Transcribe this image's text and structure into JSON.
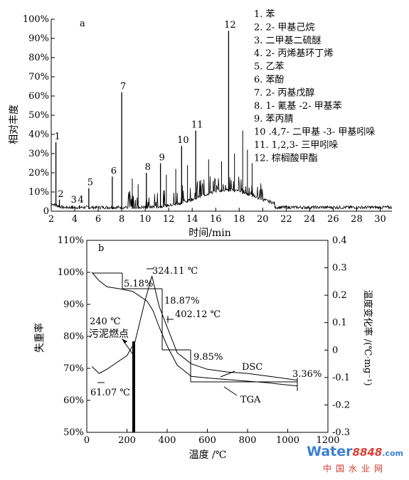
{
  "chart_data": [
    {
      "panel": "a",
      "type": "line",
      "xlabel": "时间/min",
      "ylabel": "相对丰度",
      "xlim": [
        2,
        31
      ],
      "ylim": [
        0,
        100
      ],
      "x_ticks": [
        2,
        4,
        6,
        8,
        10,
        12,
        14,
        16,
        18,
        20,
        22,
        24,
        26,
        28,
        30
      ],
      "y_ticks": [
        "0",
        "10%",
        "20%",
        "30%",
        "40%",
        "50%",
        "60%",
        "70%",
        "80%",
        "90%",
        "100%"
      ],
      "peaks": [
        {
          "label": "1",
          "x": 2.4,
          "y": 36
        },
        {
          "label": "2",
          "x": 2.7,
          "y": 6
        },
        {
          "label": "3",
          "x": 3.8,
          "y": 3
        },
        {
          "label": "4",
          "x": 4.4,
          "y": 3
        },
        {
          "label": "5",
          "x": 5.2,
          "y": 12
        },
        {
          "label": "6",
          "x": 7.2,
          "y": 18
        },
        {
          "label": "7",
          "x": 8.0,
          "y": 62
        },
        {
          "label": "8",
          "x": 10.1,
          "y": 20
        },
        {
          "label": "9",
          "x": 11.3,
          "y": 25
        },
        {
          "label": "10",
          "x": 13.1,
          "y": 34
        },
        {
          "label": "11",
          "x": 14.3,
          "y": 42
        },
        {
          "label": "12",
          "x": 17.1,
          "y": 94
        }
      ],
      "minor_peaks": [
        {
          "x": 8.9,
          "y": 17
        },
        {
          "x": 9.4,
          "y": 14
        },
        {
          "x": 11.8,
          "y": 19
        },
        {
          "x": 12.6,
          "y": 22
        },
        {
          "x": 13.6,
          "y": 24
        },
        {
          "x": 15.4,
          "y": 27
        },
        {
          "x": 16.5,
          "y": 26
        },
        {
          "x": 17.6,
          "y": 30
        },
        {
          "x": 18.3,
          "y": 42
        },
        {
          "x": 18.7,
          "y": 32
        },
        {
          "x": 19.1,
          "y": 25
        }
      ],
      "legend": [
        "1. 苯",
        "2. 2- 甲基己烷",
        "3. 二甲基二硫醚",
        "4. 2- 丙烯基环丁烯",
        "5. 乙苯",
        "6. 苯酚",
        "7. 2- 丙基戊醇",
        "8. 1- 氰基 -2- 甲基苯",
        "9. 苯丙腈",
        "10 .4,7- 二甲基 -3- 甲基吲哚",
        "11. 1,2,3- 三甲吲哚",
        "12. 棕榈酸甲酯"
      ]
    },
    {
      "panel": "b",
      "type": "line",
      "xlabel": "温度 /℃",
      "ylabel": "失重率",
      "y2label": "温度变化率 /(℃·mg⁻¹)",
      "xlim": [
        0,
        1200
      ],
      "ylim": [
        50,
        110
      ],
      "y2lim": [
        -0.3,
        0.4
      ],
      "x_ticks": [
        0,
        200,
        400,
        600,
        800,
        1000,
        1200
      ],
      "y_ticks": [
        "50%",
        "60%",
        "70%",
        "80%",
        "90%",
        "100%",
        "110%"
      ],
      "y2_ticks": [
        "-0.3",
        "-0.2",
        "-0.1",
        "0",
        "0.1",
        "0.2",
        "0.3",
        "0.4"
      ],
      "series": [
        {
          "name": "TGA",
          "axis": "left",
          "x": [
            25,
            60,
            100,
            170,
            230,
            300,
            330,
            360,
            400,
            450,
            520,
            600,
            700,
            800,
            900,
            1000,
            1050
          ],
          "y": [
            100,
            97.5,
            95.5,
            94.8,
            94,
            91,
            88,
            83,
            77,
            71,
            67.5,
            67,
            66.5,
            66,
            65.5,
            64.8,
            64.5
          ]
        },
        {
          "name": "DSC",
          "axis": "right",
          "x": [
            25,
            61.07,
            100,
            150,
            200,
            240,
            290,
            324.11,
            360,
            402.12,
            450,
            520,
            600,
            700,
            800,
            900,
            1000,
            1050
          ],
          "y": [
            -0.06,
            -0.085,
            -0.07,
            -0.045,
            -0.02,
            0.03,
            0.18,
            0.27,
            0.16,
            0.08,
            -0.01,
            -0.05,
            -0.07,
            -0.08,
            -0.085,
            -0.095,
            -0.105,
            -0.11
          ]
        }
      ],
      "annotations": [
        {
          "text": "324.11 ℃"
        },
        {
          "text": "402.12 ℃"
        },
        {
          "text": "240 ℃"
        },
        {
          "text": "污泥燃点"
        },
        {
          "text": "61.07 ℃"
        },
        {
          "text": "5.18%"
        },
        {
          "text": "18.87%"
        },
        {
          "text": "9.85%"
        },
        {
          "text": "3.36%"
        }
      ]
    }
  ],
  "watermark": {
    "brand": "Water",
    "number": "8848",
    "suffix": ".com",
    "site": "中国水业网"
  }
}
